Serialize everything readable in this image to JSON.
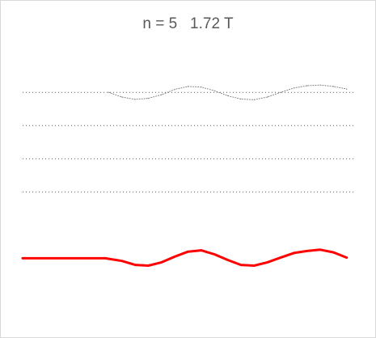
{
  "chart_data": {
    "type": "line",
    "title": "n = 5   1.72 T",
    "xlabel": "",
    "ylabel": "",
    "xlim": [
      0,
      1
    ],
    "ylim": [
      -1.5,
      6.2
    ],
    "grid": false,
    "legend": "none",
    "gridlines": {
      "style": "dotted",
      "color": "#595959",
      "levels": [
        5,
        4,
        3,
        2
      ]
    },
    "series": [
      {
        "style": "dotted",
        "color": "#7f7f7f",
        "x": [
          0.26,
          0.3,
          0.34,
          0.38,
          0.42,
          0.46,
          0.5,
          0.54,
          0.58,
          0.62,
          0.66,
          0.7,
          0.74,
          0.78,
          0.82,
          0.86,
          0.9,
          0.94,
          0.98
        ],
        "y": [
          5.0,
          4.86,
          4.79,
          4.82,
          4.93,
          5.09,
          5.18,
          5.16,
          5.05,
          4.9,
          4.8,
          4.78,
          4.86,
          5.0,
          5.13,
          5.2,
          5.22,
          5.18,
          5.1
        ]
      },
      {
        "style": "solid",
        "color": "#ff0000",
        "x": [
          0,
          0.05,
          0.1,
          0.15,
          0.2,
          0.25,
          0.3,
          0.34,
          0.38,
          0.42,
          0.46,
          0.5,
          0.54,
          0.58,
          0.62,
          0.66,
          0.7,
          0.74,
          0.78,
          0.82,
          0.86,
          0.9,
          0.94,
          0.98
        ],
        "y": [
          0,
          0,
          0,
          0,
          0,
          0,
          -0.08,
          -0.2,
          -0.22,
          -0.12,
          0.05,
          0.2,
          0.24,
          0.12,
          -0.05,
          -0.2,
          -0.22,
          -0.12,
          0.02,
          0.16,
          0.22,
          0.26,
          0.18,
          0.02
        ]
      }
    ]
  }
}
